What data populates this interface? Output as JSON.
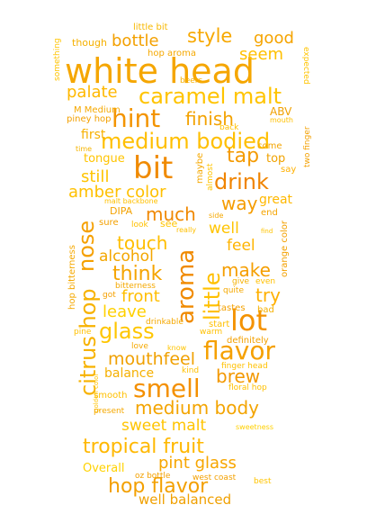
{
  "words": [
    {
      "id": "white_head",
      "text": "white head",
      "color": "#f5a600"
    },
    {
      "id": "caramel_malt",
      "text": "caramel malt",
      "color": "#ffc400"
    },
    {
      "id": "medium_bodied",
      "text": "medium bodied",
      "color": "#ffbf00"
    },
    {
      "id": "bit",
      "text": "bit",
      "color": "#f08a00"
    },
    {
      "id": "hint",
      "text": "hint",
      "color": "#f39400"
    },
    {
      "id": "drink",
      "text": "drink",
      "color": "#f08400"
    },
    {
      "id": "style",
      "text": "style",
      "color": "#f7a800"
    },
    {
      "id": "bottle",
      "text": "bottle",
      "color": "#f3a000"
    },
    {
      "id": "good",
      "text": "good",
      "color": "#f5a400"
    },
    {
      "id": "seem",
      "text": "seem",
      "color": "#ffc000"
    },
    {
      "id": "palate",
      "text": "palate",
      "color": "#ffb800"
    },
    {
      "id": "finish",
      "text": "finish",
      "color": "#f3a200"
    },
    {
      "id": "first",
      "text": "first",
      "color": "#f7b000"
    },
    {
      "id": "still",
      "text": "still",
      "color": "#ffc400"
    },
    {
      "id": "tap",
      "text": "tap",
      "color": "#f49a00"
    },
    {
      "id": "top",
      "text": "top",
      "color": "#f0a200"
    },
    {
      "id": "tongue",
      "text": "tongue",
      "color": "#ffc400"
    },
    {
      "id": "amber_color",
      "text": "amber color",
      "color": "#ffc000"
    },
    {
      "id": "way",
      "text": "way",
      "color": "#f59c00"
    },
    {
      "id": "great",
      "text": "great",
      "color": "#ffb800"
    },
    {
      "id": "much",
      "text": "much",
      "color": "#f08800"
    },
    {
      "id": "well",
      "text": "well",
      "color": "#ffc400"
    },
    {
      "id": "nose",
      "text": "nose",
      "color": "#f5a000"
    },
    {
      "id": "citrus_hop",
      "text": "citrus hop",
      "color": "#f7b200"
    },
    {
      "id": "touch",
      "text": "touch",
      "color": "#ffbe00"
    },
    {
      "id": "alcohol",
      "text": "alcohol",
      "color": "#f3a600"
    },
    {
      "id": "feel",
      "text": "feel",
      "color": "#ffb400"
    },
    {
      "id": "little",
      "text": "little",
      "color": "#ffc000"
    },
    {
      "id": "aroma",
      "text": "aroma",
      "color": "#f08a00"
    },
    {
      "id": "think",
      "text": "think",
      "color": "#f5a400"
    },
    {
      "id": "make",
      "text": "make",
      "color": "#f59e00"
    },
    {
      "id": "front",
      "text": "front",
      "color": "#ffbe00"
    },
    {
      "id": "try",
      "text": "try",
      "color": "#ffb000"
    },
    {
      "id": "leave",
      "text": "leave",
      "color": "#ffd000"
    },
    {
      "id": "lot",
      "text": "lot",
      "color": "#f49200"
    },
    {
      "id": "glass",
      "text": "glass",
      "color": "#ffc600"
    },
    {
      "id": "flavor",
      "text": "flavor",
      "color": "#f5a000"
    },
    {
      "id": "mouthfeel",
      "text": "mouthfeel",
      "color": "#f0a000"
    },
    {
      "id": "balance",
      "text": "balance",
      "color": "#f5b000"
    },
    {
      "id": "brew",
      "text": "brew",
      "color": "#f39800"
    },
    {
      "id": "smell",
      "text": "smell",
      "color": "#f49000"
    },
    {
      "id": "medium_body",
      "text": "medium body",
      "color": "#f3a400"
    },
    {
      "id": "sweet_malt",
      "text": "sweet malt",
      "color": "#ffc400"
    },
    {
      "id": "tropical_fruit",
      "text": "tropical fruit",
      "color": "#ffb800"
    },
    {
      "id": "pint_glass",
      "text": "pint glass",
      "color": "#f7a600"
    },
    {
      "id": "overall",
      "text": "Overall",
      "color": "#ffd200"
    },
    {
      "id": "hop_flavor",
      "text": "hop flavor",
      "color": "#f3a000"
    },
    {
      "id": "well_balanced",
      "text": "well balanced",
      "color": "#f0a000"
    },
    {
      "id": "little_bit",
      "text": "little bit",
      "color": "#f7b800"
    },
    {
      "id": "something",
      "text": "something",
      "color": "#ffc400"
    },
    {
      "id": "though",
      "text": "though",
      "color": "#f5b000"
    },
    {
      "id": "hop_aroma",
      "text": "hop aroma",
      "color": "#f5a800"
    },
    {
      "id": "beers",
      "text": "beers",
      "color": "#f7b000"
    },
    {
      "id": "m_medium",
      "text": "M Medium",
      "color": "#f5a800"
    },
    {
      "id": "piney_hop",
      "text": "piney hop",
      "color": "#f3a000"
    },
    {
      "id": "abv",
      "text": "ABV",
      "color": "#f0a000"
    },
    {
      "id": "mouth",
      "text": "mouth",
      "color": "#ffc000"
    },
    {
      "id": "come",
      "text": "come",
      "color": "#f3a400"
    },
    {
      "id": "say",
      "text": "say",
      "color": "#ffb000"
    },
    {
      "id": "expected",
      "text": "expected",
      "color": "#ffc400"
    },
    {
      "id": "two_finger",
      "text": "two finger",
      "color": "#f3a000"
    },
    {
      "id": "back",
      "text": "back",
      "color": "#ffc000"
    },
    {
      "id": "time",
      "text": "time",
      "color": "#f5b400"
    },
    {
      "id": "maybe",
      "text": "maybe",
      "color": "#f5a800"
    },
    {
      "id": "almost",
      "text": "almost",
      "color": "#ffc400"
    },
    {
      "id": "malt_backbone",
      "text": "malt backbone",
      "color": "#ffc000"
    },
    {
      "id": "dipa",
      "text": "DIPA",
      "color": "#f3a200"
    },
    {
      "id": "sure",
      "text": "sure",
      "color": "#f3a000"
    },
    {
      "id": "look",
      "text": "look",
      "color": "#ffc000"
    },
    {
      "id": "see",
      "text": "see",
      "color": "#ffc400"
    },
    {
      "id": "end",
      "text": "end",
      "color": "#f5a400"
    },
    {
      "id": "orange_color",
      "text": "orange color",
      "color": "#f3a000"
    },
    {
      "id": "side",
      "text": "side",
      "color": "#f5a800"
    },
    {
      "id": "really",
      "text": "really",
      "color": "#ffc000"
    },
    {
      "id": "find",
      "text": "find",
      "color": "#ffc400"
    },
    {
      "id": "hop_bitterness",
      "text": "hop bitterness",
      "color": "#f5a800"
    },
    {
      "id": "bitterness",
      "text": "bitterness",
      "color": "#f5a800"
    },
    {
      "id": "give",
      "text": "give",
      "color": "#f5b000"
    },
    {
      "id": "even",
      "text": "even",
      "color": "#ffc000"
    },
    {
      "id": "got",
      "text": "got",
      "color": "#f5a000"
    },
    {
      "id": "quite",
      "text": "quite",
      "color": "#f5a800"
    },
    {
      "id": "tastes",
      "text": "tastes",
      "color": "#f3a000"
    },
    {
      "id": "bad",
      "text": "bad",
      "color": "#f5b000"
    },
    {
      "id": "drinkable",
      "text": "drinkable",
      "color": "#f5a800"
    },
    {
      "id": "start",
      "text": "start",
      "color": "#ffc000"
    },
    {
      "id": "pine",
      "text": "pine",
      "color": "#ffc000"
    },
    {
      "id": "warm",
      "text": "warm",
      "color": "#ffc000"
    },
    {
      "id": "definitely",
      "text": "definitely",
      "color": "#f3a000"
    },
    {
      "id": "love",
      "text": "love",
      "color": "#f5a800"
    },
    {
      "id": "know",
      "text": "know",
      "color": "#ffc400"
    },
    {
      "id": "finger_head",
      "text": "finger head",
      "color": "#ffc000"
    },
    {
      "id": "kind",
      "text": "kind",
      "color": "#ffc000"
    },
    {
      "id": "floral_hop",
      "text": "floral hop",
      "color": "#ffc000"
    },
    {
      "id": "smooth",
      "text": "smooth",
      "color": "#ffc000"
    },
    {
      "id": "golden_color",
      "text": "golden color",
      "color": "#ffc400"
    },
    {
      "id": "present",
      "text": "present",
      "color": "#f5a800"
    },
    {
      "id": "sweetness",
      "text": "sweetness",
      "color": "#ffd000"
    },
    {
      "id": "oz_bottle",
      "text": "oz bottle",
      "color": "#f3a000"
    },
    {
      "id": "west_coast",
      "text": "west coast",
      "color": "#f3a000"
    },
    {
      "id": "best",
      "text": "best",
      "color": "#ffc400"
    }
  ]
}
